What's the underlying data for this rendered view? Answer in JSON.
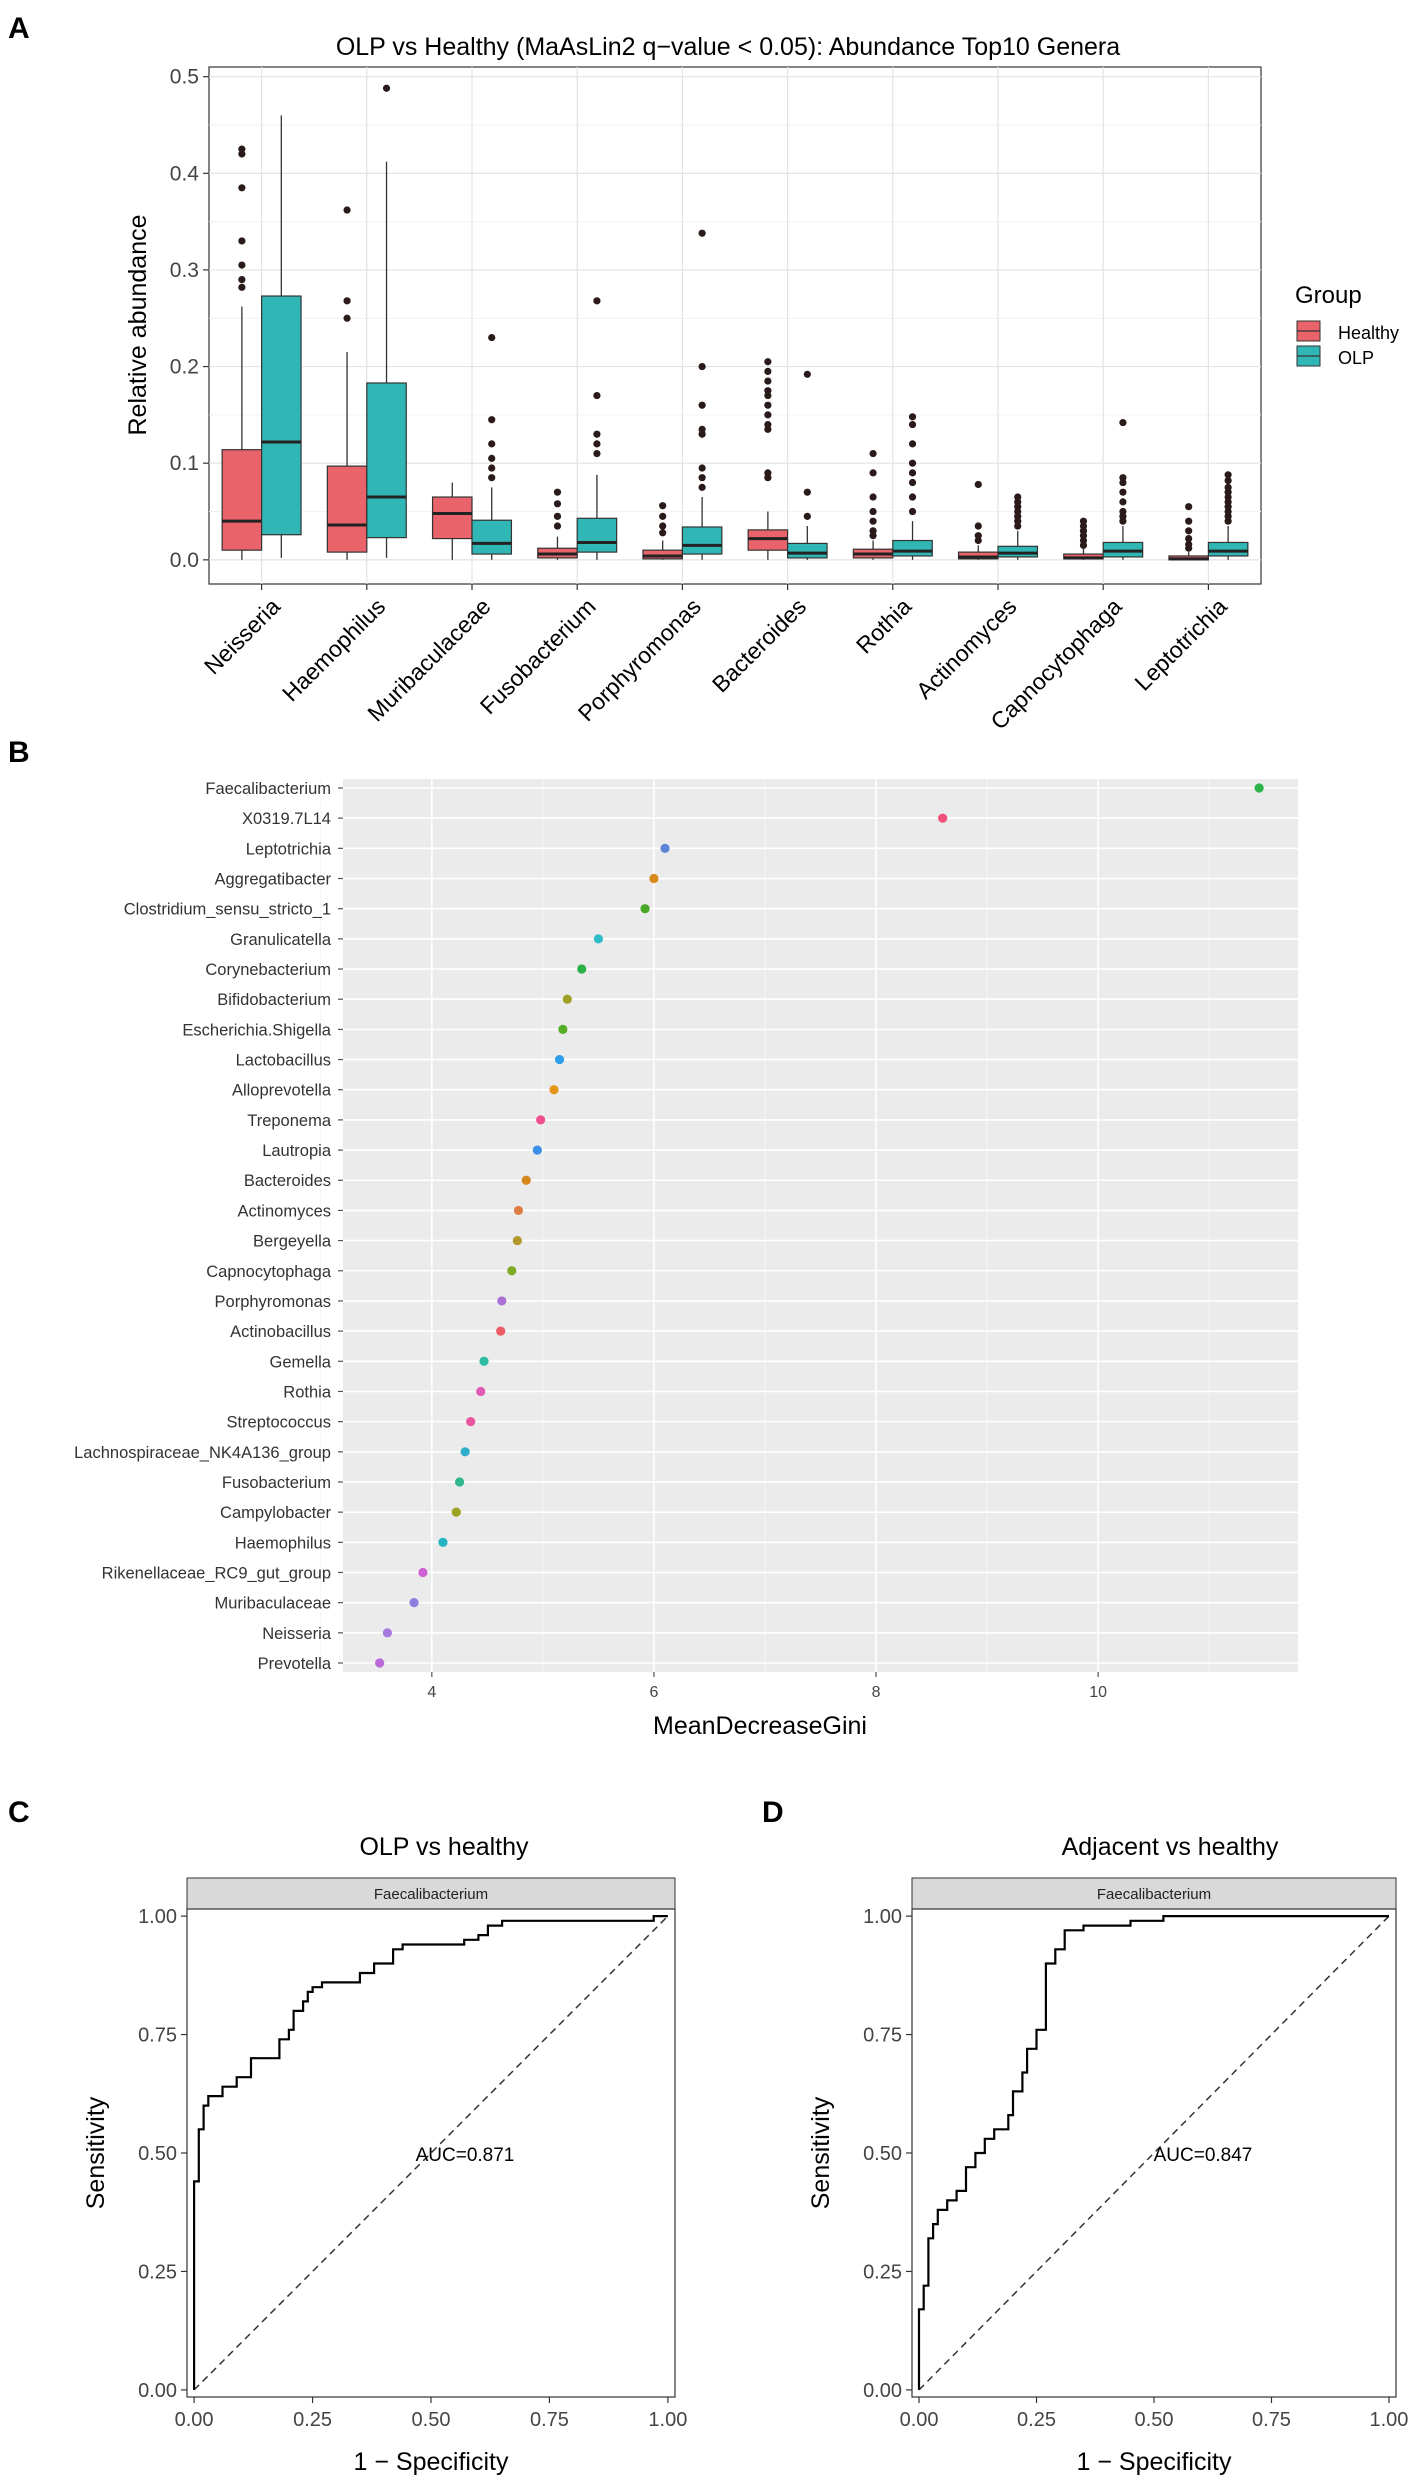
{
  "panel_letters": {
    "A": "A",
    "B": "B",
    "C": "C",
    "D": "D"
  },
  "colors": {
    "healthy": "#e8646a",
    "olp": "#30b6b4",
    "panel_grey": "#ebebeb",
    "strip": "#d9d9d9"
  },
  "chart_data": [
    {
      "id": "A",
      "type": "box",
      "title": "OLP vs Healthy (MaAsLin2 q−value < 0.05): Abundance Top10 Genera",
      "ylabel": "Relative abundance",
      "xlabel": "",
      "ylim": [
        -0.025,
        0.51
      ],
      "yticks": [
        0.0,
        0.1,
        0.2,
        0.3,
        0.4,
        0.5
      ],
      "ytick_labels": [
        "0.0",
        "0.1",
        "0.2",
        "0.3",
        "0.4",
        "0.5"
      ],
      "legend": {
        "title": "Group",
        "items": [
          "Healthy",
          "OLP"
        ],
        "position": "right"
      },
      "categories": [
        "Neisseria",
        "Haemophilus",
        "Muribaculaceae",
        "Fusobacterium",
        "Porphyromonas",
        "Bacteroides",
        "Rothia",
        "Actinomyces",
        "Capnocytophaga",
        "Leptotrichia"
      ],
      "series": [
        {
          "name": "Healthy",
          "boxes": [
            {
              "min": 0.0,
              "q1": 0.01,
              "median": 0.04,
              "q3": 0.114,
              "max": 0.262,
              "outliers": [
                0.425,
                0.42,
                0.385,
                0.33,
                0.305,
                0.29,
                0.282
              ]
            },
            {
              "min": 0.0,
              "q1": 0.008,
              "median": 0.036,
              "q3": 0.097,
              "max": 0.215,
              "outliers": [
                0.362,
                0.268,
                0.25
              ]
            },
            {
              "min": 0.0,
              "q1": 0.022,
              "median": 0.048,
              "q3": 0.065,
              "max": 0.08,
              "outliers": []
            },
            {
              "min": 0.0,
              "q1": 0.002,
              "median": 0.006,
              "q3": 0.012,
              "max": 0.024,
              "outliers": [
                0.035,
                0.045,
                0.058,
                0.07
              ]
            },
            {
              "min": 0.0,
              "q1": 0.001,
              "median": 0.004,
              "q3": 0.01,
              "max": 0.02,
              "outliers": [
                0.028,
                0.035,
                0.045,
                0.056
              ]
            },
            {
              "min": 0.0,
              "q1": 0.01,
              "median": 0.022,
              "q3": 0.031,
              "max": 0.05,
              "outliers": [
                0.085,
                0.09,
                0.135,
                0.14,
                0.15,
                0.16,
                0.17,
                0.175,
                0.185,
                0.195,
                0.205
              ]
            },
            {
              "min": 0.0,
              "q1": 0.002,
              "median": 0.006,
              "q3": 0.011,
              "max": 0.02,
              "outliers": [
                0.025,
                0.03,
                0.04,
                0.05,
                0.065,
                0.09,
                0.11
              ]
            },
            {
              "min": 0.0,
              "q1": 0.001,
              "median": 0.003,
              "q3": 0.008,
              "max": 0.015,
              "outliers": [
                0.02,
                0.025,
                0.035,
                0.078
              ]
            },
            {
              "min": 0.0,
              "q1": 0.001,
              "median": 0.002,
              "q3": 0.006,
              "max": 0.012,
              "outliers": [
                0.015,
                0.02,
                0.025,
                0.03,
                0.035,
                0.04
              ]
            },
            {
              "min": 0.0,
              "q1": 0.0,
              "median": 0.001,
              "q3": 0.004,
              "max": 0.008,
              "outliers": [
                0.012,
                0.016,
                0.022,
                0.03,
                0.04,
                0.055
              ]
            }
          ]
        },
        {
          "name": "OLP",
          "boxes": [
            {
              "min": 0.002,
              "q1": 0.026,
              "median": 0.122,
              "q3": 0.273,
              "max": 0.46,
              "outliers": []
            },
            {
              "min": 0.002,
              "q1": 0.023,
              "median": 0.065,
              "q3": 0.183,
              "max": 0.412,
              "outliers": [
                0.488
              ]
            },
            {
              "min": 0.0,
              "q1": 0.006,
              "median": 0.017,
              "q3": 0.041,
              "max": 0.075,
              "outliers": [
                0.085,
                0.095,
                0.105,
                0.12,
                0.145,
                0.23
              ]
            },
            {
              "min": 0.0,
              "q1": 0.008,
              "median": 0.018,
              "q3": 0.043,
              "max": 0.088,
              "outliers": [
                0.11,
                0.12,
                0.13,
                0.17,
                0.268
              ]
            },
            {
              "min": 0.0,
              "q1": 0.006,
              "median": 0.015,
              "q3": 0.034,
              "max": 0.065,
              "outliers": [
                0.075,
                0.085,
                0.095,
                0.13,
                0.135,
                0.16,
                0.2,
                0.338
              ]
            },
            {
              "min": 0.0,
              "q1": 0.002,
              "median": 0.007,
              "q3": 0.017,
              "max": 0.035,
              "outliers": [
                0.045,
                0.07,
                0.192
              ]
            },
            {
              "min": 0.0,
              "q1": 0.004,
              "median": 0.009,
              "q3": 0.02,
              "max": 0.04,
              "outliers": [
                0.05,
                0.065,
                0.08,
                0.09,
                0.1,
                0.12,
                0.14,
                0.148
              ]
            },
            {
              "min": 0.0,
              "q1": 0.003,
              "median": 0.007,
              "q3": 0.014,
              "max": 0.03,
              "outliers": [
                0.035,
                0.04,
                0.045,
                0.05,
                0.055,
                0.06,
                0.065
              ]
            },
            {
              "min": 0.0,
              "q1": 0.003,
              "median": 0.009,
              "q3": 0.018,
              "max": 0.035,
              "outliers": [
                0.04,
                0.045,
                0.05,
                0.06,
                0.07,
                0.08,
                0.085,
                0.142
              ]
            },
            {
              "min": 0.0,
              "q1": 0.004,
              "median": 0.009,
              "q3": 0.018,
              "max": 0.035,
              "outliers": [
                0.04,
                0.045,
                0.05,
                0.055,
                0.06,
                0.065,
                0.07,
                0.075,
                0.082,
                0.088
              ]
            }
          ]
        }
      ]
    },
    {
      "id": "B",
      "type": "scatter",
      "title": "",
      "xlabel": "MeanDecreaseGini",
      "ylabel": "",
      "xlim": [
        3.2,
        11.8
      ],
      "xticks": [
        4,
        6,
        8,
        10
      ],
      "xtick_labels": [
        "4",
        "6",
        "8",
        "10"
      ],
      "categories": [
        "Faecalibacterium",
        "X0319.7L14",
        "Leptotrichia",
        "Aggregatibacter",
        "Clostridium_sensu_stricto_1",
        "Granulicatella",
        "Corynebacterium",
        "Bifidobacterium",
        "Escherichia.Shigella",
        "Lactobacillus",
        "Alloprevotella",
        "Treponema",
        "Lautropia",
        "Bacteroides",
        "Actinomyces",
        "Bergeyella",
        "Capnocytophaga",
        "Porphyromonas",
        "Actinobacillus",
        "Gemella",
        "Rothia",
        "Streptococcus",
        "Lachnospiraceae_NK4A136_group",
        "Fusobacterium",
        "Campylobacter",
        "Haemophilus",
        "Rikenellaceae_RC9_gut_group",
        "Muribaculaceae",
        "Neisseria",
        "Prevotella"
      ],
      "values": [
        11.45,
        8.6,
        6.1,
        6.0,
        5.92,
        5.5,
        5.35,
        5.22,
        5.18,
        5.15,
        5.1,
        4.98,
        4.95,
        4.85,
        4.78,
        4.77,
        4.72,
        4.63,
        4.62,
        4.47,
        4.44,
        4.35,
        4.3,
        4.25,
        4.22,
        4.1,
        3.92,
        3.84,
        3.6,
        3.53
      ],
      "point_colors": [
        "#2db34a",
        "#f0507a",
        "#5b84d9",
        "#d98a1a",
        "#49a825",
        "#2ebcc9",
        "#2bb14a",
        "#9ca024",
        "#55ad24",
        "#2e9de8",
        "#e39519",
        "#ef4f8a",
        "#3a8ee6",
        "#d6871c",
        "#de7d43",
        "#b2982a",
        "#7eab26",
        "#aa72d6",
        "#ed5c64",
        "#2ebba4",
        "#df5bb6",
        "#ea559e",
        "#2eaec8",
        "#2fb88e",
        "#9aa423",
        "#24b3c2",
        "#cf61d5",
        "#8f7ce0",
        "#a679e0",
        "#bb68d9"
      ]
    },
    {
      "id": "C",
      "type": "line",
      "title": "OLP vs healthy",
      "facet_label": "Faecalibacterium",
      "xlabel": "1 − Specificity",
      "ylabel": "Sensitivity",
      "annotation": "AUC=0.871",
      "xlim": [
        -0.015,
        1.015
      ],
      "ylim": [
        -0.015,
        1.015
      ],
      "xticks": [
        0.0,
        0.25,
        0.5,
        0.75,
        1.0
      ],
      "xtick_labels": [
        "0.00",
        "0.25",
        "0.50",
        "0.75",
        "1.00"
      ],
      "yticks": [
        0.0,
        0.25,
        0.5,
        0.75,
        1.0
      ],
      "ytick_labels": [
        "0.00",
        "0.25",
        "0.50",
        "0.75",
        "1.00"
      ],
      "x": [
        0,
        0,
        0.01,
        0.01,
        0.02,
        0.02,
        0.03,
        0.03,
        0.06,
        0.06,
        0.09,
        0.09,
        0.12,
        0.12,
        0.18,
        0.18,
        0.2,
        0.2,
        0.21,
        0.21,
        0.23,
        0.23,
        0.24,
        0.24,
        0.25,
        0.25,
        0.27,
        0.27,
        0.35,
        0.35,
        0.38,
        0.38,
        0.42,
        0.42,
        0.44,
        0.44,
        0.57,
        0.57,
        0.6,
        0.6,
        0.62,
        0.62,
        0.65,
        0.65,
        0.97,
        0.97,
        1.0
      ],
      "y": [
        0,
        0.44,
        0.44,
        0.55,
        0.55,
        0.6,
        0.6,
        0.62,
        0.62,
        0.64,
        0.64,
        0.66,
        0.66,
        0.7,
        0.7,
        0.74,
        0.74,
        0.76,
        0.76,
        0.8,
        0.8,
        0.82,
        0.82,
        0.84,
        0.84,
        0.85,
        0.85,
        0.86,
        0.86,
        0.88,
        0.88,
        0.9,
        0.9,
        0.93,
        0.93,
        0.94,
        0.94,
        0.95,
        0.95,
        0.96,
        0.96,
        0.98,
        0.98,
        0.99,
        0.99,
        1.0,
        1.0
      ]
    },
    {
      "id": "D",
      "type": "line",
      "title": "Adjacent vs healthy",
      "facet_label": "Faecalibacterium",
      "xlabel": "1 − Specificity",
      "ylabel": "Sensitivity",
      "annotation": "AUC=0.847",
      "xlim": [
        -0.015,
        1.015
      ],
      "ylim": [
        -0.015,
        1.015
      ],
      "xticks": [
        0.0,
        0.25,
        0.5,
        0.75,
        1.0
      ],
      "xtick_labels": [
        "0.00",
        "0.25",
        "0.50",
        "0.75",
        "1.00"
      ],
      "yticks": [
        0.0,
        0.25,
        0.5,
        0.75,
        1.0
      ],
      "ytick_labels": [
        "0.00",
        "0.25",
        "0.50",
        "0.75",
        "1.00"
      ],
      "x": [
        0,
        0,
        0.01,
        0.01,
        0.02,
        0.02,
        0.03,
        0.03,
        0.04,
        0.04,
        0.06,
        0.06,
        0.08,
        0.08,
        0.1,
        0.1,
        0.12,
        0.12,
        0.14,
        0.14,
        0.16,
        0.16,
        0.19,
        0.19,
        0.2,
        0.2,
        0.22,
        0.22,
        0.23,
        0.23,
        0.25,
        0.25,
        0.27,
        0.27,
        0.29,
        0.29,
        0.31,
        0.31,
        0.35,
        0.35,
        0.45,
        0.45,
        0.52,
        0.52,
        1.0
      ],
      "y": [
        0,
        0.17,
        0.17,
        0.22,
        0.22,
        0.32,
        0.32,
        0.35,
        0.35,
        0.38,
        0.38,
        0.4,
        0.4,
        0.42,
        0.42,
        0.47,
        0.47,
        0.5,
        0.5,
        0.53,
        0.53,
        0.55,
        0.55,
        0.58,
        0.58,
        0.63,
        0.63,
        0.67,
        0.67,
        0.72,
        0.72,
        0.76,
        0.76,
        0.9,
        0.9,
        0.93,
        0.93,
        0.97,
        0.97,
        0.98,
        0.98,
        0.99,
        0.99,
        1.0,
        1.0
      ]
    }
  ]
}
